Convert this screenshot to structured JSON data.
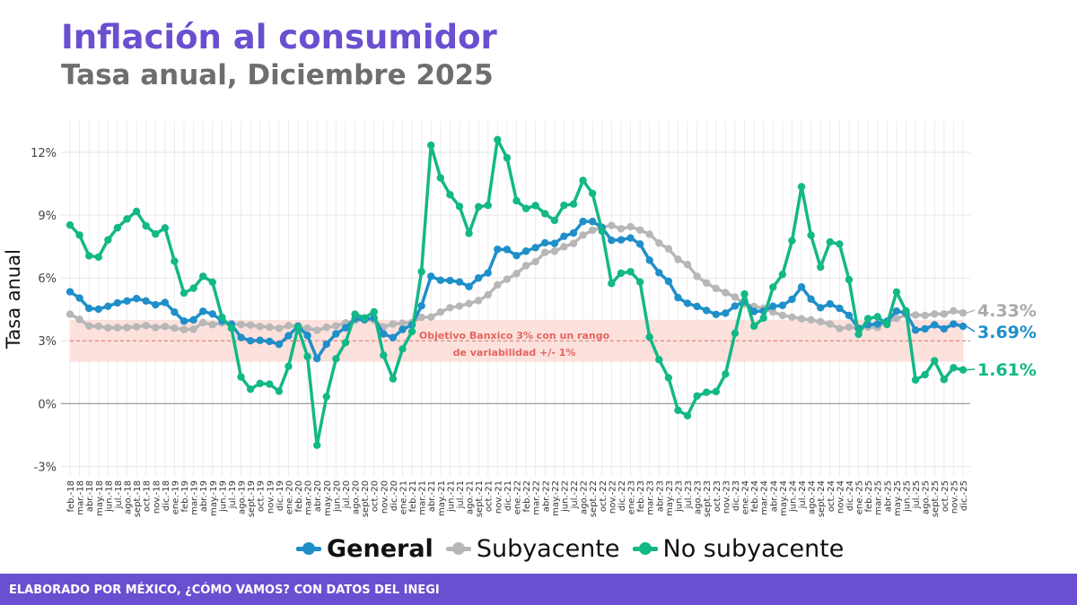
{
  "header": {
    "title": "Inflación al consumidor",
    "subtitle": "Tasa anual, Diciembre 2025"
  },
  "footer": {
    "text": "ELABORADO POR MÉXICO, ¿CÓMO VAMOS? CON DATOS DEL INEGI"
  },
  "colors": {
    "brand": "#6a4fd0",
    "general": "#1f8fc9",
    "subyacente": "#b7b7b7",
    "no_subyacente": "#12b886",
    "target_band": "#fbdcd6",
    "target_line": "#e0706a"
  },
  "legend": [
    {
      "label": "General",
      "color": "#1f8fc9",
      "bold": true
    },
    {
      "label": "Subyacente",
      "color": "#b7b7b7",
      "bold": false
    },
    {
      "label": "No subyacente",
      "color": "#12b886",
      "bold": false
    }
  ],
  "chart_data": {
    "type": "line",
    "ylabel": "Tasa anual",
    "xlabel": "",
    "ylim": [
      -3.5,
      13.5
    ],
    "y_ticks": [
      -3,
      0,
      3,
      6,
      9,
      12
    ],
    "y_tick_labels": [
      "-3%",
      "0%",
      "3%",
      "6%",
      "9%",
      "12%"
    ],
    "grid": true,
    "legend_position": "bottom",
    "x": [
      "feb.-18",
      "mar.-18",
      "abr.-18",
      "may.-18",
      "jun.-18",
      "jul.-18",
      "ago.-18",
      "sept.-18",
      "oct.-18",
      "nov.-18",
      "dic.-18",
      "ene.-19",
      "feb.-19",
      "mar.-19",
      "abr.-19",
      "may.-19",
      "jun.-19",
      "jul.-19",
      "ago.-19",
      "sept.-19",
      "oct.-19",
      "nov.-19",
      "dic.-19",
      "ene.-20",
      "feb.-20",
      "mar.-20",
      "abr.-20",
      "may.-20",
      "jun.-20",
      "jul.-20",
      "ago.-20",
      "sept.-20",
      "oct.-20",
      "nov.-20",
      "dic.-20",
      "ene.-21",
      "feb.-21",
      "mar.-21",
      "abr.-21",
      "may.-21",
      "jun.-21",
      "jul.-21",
      "ago.-21",
      "sept.-21",
      "oct.-21",
      "nov.-21",
      "dic.-21",
      "ene.-22",
      "feb.-22",
      "mar.-22",
      "abr.-22",
      "may.-22",
      "jun.-22",
      "jul.-22",
      "ago.-22",
      "sept.-22",
      "oct.-22",
      "nov.-22",
      "dic.-22",
      "ene.-23",
      "feb.-23",
      "mar.-23",
      "abr.-23",
      "may.-23",
      "jun.-23",
      "jul.-23",
      "ago.-23",
      "sept.-23",
      "oct.-23",
      "nov.-23",
      "dic.-23",
      "ene.-24",
      "feb.-24",
      "mar.-24",
      "abr.-24",
      "may.-24",
      "jun.-24",
      "jul.-24",
      "ago.-24",
      "sept.-24",
      "oct.-24",
      "nov.-24",
      "dic.-24",
      "ene.-25",
      "feb.-25",
      "mar.-25",
      "abr.-25",
      "may.-25",
      "jun.-25",
      "jul.-25",
      "ago.-25",
      "sept.-25",
      "oct.-25",
      "nov.-25",
      "dic.-25"
    ],
    "series": [
      {
        "name": "General",
        "color": "#1f8fc9",
        "end_label": "3.69%",
        "values": [
          5.34,
          5.04,
          4.55,
          4.51,
          4.65,
          4.81,
          4.9,
          5.02,
          4.9,
          4.72,
          4.83,
          4.37,
          3.94,
          4.0,
          4.41,
          4.28,
          3.95,
          3.78,
          3.16,
          3.0,
          3.02,
          2.97,
          2.83,
          3.24,
          3.7,
          3.25,
          2.15,
          2.84,
          3.33,
          3.62,
          4.05,
          4.01,
          4.09,
          3.33,
          3.15,
          3.54,
          3.76,
          4.67,
          6.08,
          5.89,
          5.88,
          5.81,
          5.59,
          6.0,
          6.24,
          7.37,
          7.36,
          7.07,
          7.28,
          7.45,
          7.68,
          7.65,
          7.99,
          8.15,
          8.7,
          8.7,
          8.41,
          7.8,
          7.82,
          7.91,
          7.62,
          6.85,
          6.25,
          5.84,
          5.06,
          4.79,
          4.64,
          4.45,
          4.26,
          4.32,
          4.66,
          4.88,
          4.4,
          4.42,
          4.65,
          4.69,
          4.98,
          5.57,
          4.99,
          4.58,
          4.76,
          4.55,
          4.21,
          3.59,
          3.77,
          3.8,
          3.93,
          4.42,
          4.32,
          3.51,
          3.57,
          3.76,
          3.57,
          3.8,
          3.69
        ]
      },
      {
        "name": "Subyacente",
        "color": "#b7b7b7",
        "end_label": "4.33%",
        "values": [
          4.27,
          4.02,
          3.71,
          3.69,
          3.62,
          3.63,
          3.63,
          3.67,
          3.73,
          3.63,
          3.68,
          3.6,
          3.54,
          3.55,
          3.87,
          3.77,
          3.85,
          3.82,
          3.78,
          3.75,
          3.68,
          3.65,
          3.59,
          3.73,
          3.66,
          3.6,
          3.5,
          3.64,
          3.71,
          3.85,
          3.97,
          3.99,
          3.98,
          3.66,
          3.8,
          3.84,
          3.87,
          4.12,
          4.13,
          4.37,
          4.58,
          4.66,
          4.78,
          4.92,
          5.19,
          5.67,
          5.94,
          6.21,
          6.59,
          6.78,
          7.22,
          7.28,
          7.49,
          7.65,
          8.05,
          8.28,
          8.42,
          8.51,
          8.35,
          8.45,
          8.29,
          8.09,
          7.67,
          7.39,
          6.89,
          6.64,
          6.08,
          5.76,
          5.5,
          5.3,
          5.09,
          4.76,
          4.64,
          4.55,
          4.37,
          4.21,
          4.13,
          4.05,
          4.0,
          3.91,
          3.8,
          3.58,
          3.65,
          3.61,
          3.65,
          3.64,
          3.93,
          4.06,
          4.24,
          4.23,
          4.21,
          4.28,
          4.28,
          4.43,
          4.33
        ]
      },
      {
        "name": "No subyacente",
        "color": "#12b886",
        "end_label": "1.61%",
        "values": [
          8.53,
          8.05,
          7.06,
          7.0,
          7.82,
          8.4,
          8.82,
          9.18,
          8.49,
          8.1,
          8.39,
          6.8,
          5.28,
          5.51,
          6.08,
          5.8,
          4.12,
          3.6,
          1.27,
          0.69,
          0.96,
          0.93,
          0.59,
          1.78,
          3.64,
          2.25,
          -1.99,
          0.33,
          2.14,
          2.91,
          4.27,
          4.09,
          4.38,
          2.31,
          1.18,
          2.61,
          3.44,
          6.3,
          12.34,
          10.78,
          9.98,
          9.42,
          8.13,
          9.4,
          9.47,
          12.61,
          11.74,
          9.69,
          9.32,
          9.46,
          9.07,
          8.75,
          9.47,
          9.53,
          10.66,
          10.04,
          8.24,
          5.74,
          6.23,
          6.3,
          5.81,
          3.18,
          2.1,
          1.23,
          -0.32,
          -0.58,
          0.36,
          0.54,
          0.57,
          1.41,
          3.36,
          5.23,
          3.7,
          4.09,
          5.56,
          6.17,
          7.78,
          10.36,
          8.04,
          6.52,
          7.72,
          7.62,
          5.92,
          3.31,
          4.06,
          4.15,
          3.78,
          5.33,
          4.43,
          1.13,
          1.38,
          2.04,
          1.15,
          1.71,
          1.61
        ]
      }
    ],
    "annotations": [
      {
        "text_line1": "Objetivo Banxico 3% con un rango",
        "text_line2": "de variabilidad +/- 1%",
        "band": [
          2,
          4
        ],
        "target": 3
      }
    ]
  }
}
